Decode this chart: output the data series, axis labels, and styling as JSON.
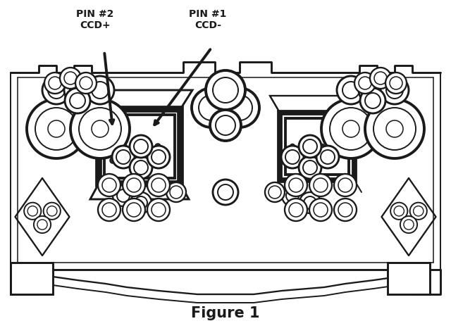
{
  "title": "Figure 1",
  "title_fontsize": 15,
  "label_pin2": "PIN #2\nCCD+",
  "label_pin1": "PIN #1\nCCD-",
  "bg_color": "#ffffff",
  "line_color": "#1a1a1a",
  "lw": 1.4
}
